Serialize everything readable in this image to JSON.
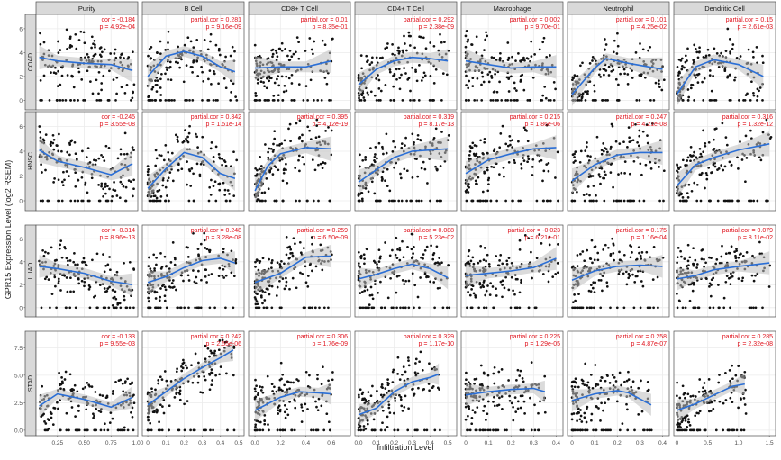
{
  "chart_data": {
    "type": "scatter",
    "ylabel": "GPR15 Expression Level (log2 RSEM)",
    "xlabel": "Infiltration Level",
    "columns": [
      "Purity",
      "B Cell",
      "CD8+ T Cell",
      "CD4+ T Cell",
      "Macrophage",
      "Neutrophil",
      "Dendritic Cell"
    ],
    "rows": [
      "COAD",
      "HNSC",
      "LUAD",
      "STAD"
    ],
    "x_axes": [
      {
        "ticks": [
          0.25,
          0.5,
          0.75,
          1.0
        ],
        "labels": [
          "0.25",
          "0.50",
          "0.75",
          "1.00"
        ],
        "xlim": [
          0.05,
          1.0
        ]
      },
      {
        "ticks": [
          0,
          0.1,
          0.2,
          0.3,
          0.4,
          0.5
        ],
        "labels": [
          "0",
          "0.1",
          "0.2",
          "0.3",
          "0.4",
          "0.5"
        ],
        "xlim": [
          -0.03,
          0.53
        ]
      },
      {
        "ticks": [
          0,
          0.2,
          0.4,
          0.6
        ],
        "labels": [
          "0.0",
          "0.2",
          "0.4",
          "0.6"
        ],
        "xlim": [
          -0.05,
          0.75
        ]
      },
      {
        "ticks": [
          0,
          0.1,
          0.2,
          0.3,
          0.4,
          0.5
        ],
        "labels": [
          "0.0",
          "0.1",
          "0.2",
          "0.3",
          "0.4",
          "0.5"
        ],
        "xlim": [
          -0.02,
          0.55
        ]
      },
      {
        "ticks": [
          0,
          0.1,
          0.2,
          0.3,
          0.4
        ],
        "labels": [
          "0",
          "0.1",
          "0.2",
          "0.3",
          "0.4"
        ],
        "xlim": [
          -0.02,
          0.43
        ]
      },
      {
        "ticks": [
          0,
          0.1,
          0.2,
          0.3,
          0.4
        ],
        "labels": [
          "0",
          "0.1",
          "0.2",
          "0.3",
          "0.4"
        ],
        "xlim": [
          -0.02,
          0.43
        ]
      },
      {
        "ticks": [
          0,
          0.5,
          1.0,
          1.5
        ],
        "labels": [
          "0",
          "0.5",
          "1.0",
          "1.5"
        ],
        "xlim": [
          -0.05,
          1.6
        ]
      }
    ],
    "y_axes": [
      {
        "ticks": [
          0,
          2,
          4,
          6
        ],
        "labels": [
          "0",
          "2",
          "4",
          "6"
        ],
        "ylim": [
          -0.8,
          7.2
        ]
      },
      {
        "ticks": [
          0,
          2,
          4,
          6
        ],
        "labels": [
          "0",
          "2",
          "4",
          "6"
        ],
        "ylim": [
          -0.8,
          7.2
        ]
      },
      {
        "ticks": [
          0,
          2,
          4,
          6
        ],
        "labels": [
          "0",
          "2",
          "4",
          "6"
        ],
        "ylim": [
          -0.8,
          7.2
        ]
      },
      {
        "ticks": [
          0,
          2.5,
          5.0,
          7.5
        ],
        "labels": [
          "0.0",
          "2.5",
          "5.0",
          "7.5"
        ],
        "ylim": [
          -0.5,
          9.0
        ]
      }
    ],
    "stats": [
      [
        [
          "cor = -0.184",
          "p = 4.92e-04"
        ],
        [
          "partial.cor = 0.281",
          "p = 9.16e-09"
        ],
        [
          "partial.cor = 0.01",
          "p = 8.35e-01"
        ],
        [
          "partial.cor = 0.292",
          "p = 2.38e-09"
        ],
        [
          "partial.cor = 0.002",
          "p = 9.70e-01"
        ],
        [
          "partial.cor = 0.101",
          "p = 4.25e-02"
        ],
        [
          "partial.cor = 0.15",
          "p = 2.61e-03"
        ]
      ],
      [
        [
          "cor = -0.245",
          "p = 3.55e-08"
        ],
        [
          "partial.cor = 0.342",
          "p = 1.51e-14"
        ],
        [
          "partial.cor = 0.395",
          "p = 4.12e-19"
        ],
        [
          "partial.cor = 0.319",
          "p = 8.17e-13"
        ],
        [
          "partial.cor = 0.215",
          "p = 1.86e-06"
        ],
        [
          "partial.cor = 0.247",
          "p = 4.21e-08"
        ],
        [
          "partial.cor = 0.316",
          "p = 1.32e-12"
        ]
      ],
      [
        [
          "cor = -0.314",
          "p = 8.96e-13"
        ],
        [
          "partial.cor = 0.248",
          "p = 3.28e-08"
        ],
        [
          "partial.cor = 0.259",
          "p = 6.50e-09"
        ],
        [
          "partial.cor = 0.088",
          "p = 5.23e-02"
        ],
        [
          "partial.cor = -0.023",
          "p = 6.21e-01"
        ],
        [
          "partial.cor = 0.175",
          "p = 1.16e-04"
        ],
        [
          "partial.cor = 0.079",
          "p = 8.11e-02"
        ]
      ],
      [
        [
          "cor = -0.133",
          "p = 9.55e-03"
        ],
        [
          "partial.cor = 0.242",
          "p = 2.55e-06"
        ],
        [
          "partial.cor = 0.306",
          "p = 1.76e-09"
        ],
        [
          "partial.cor = 0.329",
          "p = 1.17e-10"
        ],
        [
          "partial.cor = 0.225",
          "p = 1.29e-05"
        ],
        [
          "partial.cor = 0.258",
          "p = 4.87e-07"
        ],
        [
          "partial.cor = 0.285",
          "p = 2.32e-08"
        ]
      ]
    ],
    "fits": [
      [
        [
          [
            0.08,
            3.6
          ],
          [
            0.25,
            3.3
          ],
          [
            0.5,
            3.1
          ],
          [
            0.75,
            3.0
          ],
          [
            0.95,
            2.5
          ]
        ],
        [
          [
            0,
            2.0
          ],
          [
            0.1,
            3.7
          ],
          [
            0.2,
            4.1
          ],
          [
            0.3,
            3.7
          ],
          [
            0.4,
            2.8
          ],
          [
            0.48,
            2.4
          ]
        ],
        [
          [
            0,
            2.7
          ],
          [
            0.2,
            2.8
          ],
          [
            0.4,
            2.8
          ],
          [
            0.6,
            3.3
          ]
        ],
        [
          [
            0,
            1.3
          ],
          [
            0.1,
            2.6
          ],
          [
            0.2,
            3.3
          ],
          [
            0.3,
            3.6
          ],
          [
            0.4,
            3.5
          ],
          [
            0.5,
            3.3
          ]
        ],
        [
          [
            0,
            3.3
          ],
          [
            0.1,
            3.0
          ],
          [
            0.2,
            2.7
          ],
          [
            0.3,
            2.8
          ],
          [
            0.4,
            2.8
          ]
        ],
        [
          [
            0,
            0.5
          ],
          [
            0.1,
            2.7
          ],
          [
            0.15,
            3.5
          ],
          [
            0.25,
            3.1
          ],
          [
            0.4,
            2.6
          ]
        ],
        [
          [
            0,
            0.5
          ],
          [
            0.3,
            2.8
          ],
          [
            0.6,
            3.4
          ],
          [
            1.0,
            3.0
          ],
          [
            1.4,
            2.0
          ]
        ]
      ],
      [
        [
          [
            0.08,
            4.1
          ],
          [
            0.25,
            3.2
          ],
          [
            0.5,
            2.7
          ],
          [
            0.75,
            2.1
          ],
          [
            0.95,
            3.0
          ]
        ],
        [
          [
            0,
            1.0
          ],
          [
            0.1,
            2.6
          ],
          [
            0.2,
            3.9
          ],
          [
            0.3,
            3.5
          ],
          [
            0.4,
            2.2
          ],
          [
            0.48,
            1.8
          ]
        ],
        [
          [
            0,
            0.8
          ],
          [
            0.1,
            2.8
          ],
          [
            0.2,
            3.8
          ],
          [
            0.4,
            4.3
          ],
          [
            0.6,
            4.2
          ]
        ],
        [
          [
            0,
            1.5
          ],
          [
            0.1,
            2.5
          ],
          [
            0.2,
            3.5
          ],
          [
            0.3,
            4.0
          ],
          [
            0.5,
            4.2
          ]
        ],
        [
          [
            0,
            2.2
          ],
          [
            0.1,
            3.3
          ],
          [
            0.2,
            3.8
          ],
          [
            0.3,
            4.2
          ],
          [
            0.4,
            4.3
          ]
        ],
        [
          [
            0,
            1.6
          ],
          [
            0.1,
            2.9
          ],
          [
            0.2,
            3.7
          ],
          [
            0.3,
            3.9
          ],
          [
            0.4,
            3.9
          ]
        ],
        [
          [
            0,
            1.2
          ],
          [
            0.3,
            2.9
          ],
          [
            0.6,
            3.5
          ],
          [
            1.0,
            4.1
          ],
          [
            1.5,
            4.6
          ]
        ]
      ],
      [
        [
          [
            0.08,
            3.6
          ],
          [
            0.25,
            3.4
          ],
          [
            0.5,
            3.0
          ],
          [
            0.75,
            2.3
          ],
          [
            0.95,
            2.0
          ]
        ],
        [
          [
            0,
            2.2
          ],
          [
            0.1,
            2.7
          ],
          [
            0.2,
            3.5
          ],
          [
            0.3,
            4.1
          ],
          [
            0.4,
            4.3
          ],
          [
            0.48,
            3.9
          ]
        ],
        [
          [
            0,
            2.2
          ],
          [
            0.2,
            3.0
          ],
          [
            0.4,
            4.4
          ],
          [
            0.6,
            4.5
          ]
        ],
        [
          [
            0,
            2.5
          ],
          [
            0.1,
            2.9
          ],
          [
            0.2,
            3.4
          ],
          [
            0.3,
            3.8
          ],
          [
            0.4,
            3.4
          ],
          [
            0.5,
            2.6
          ]
        ],
        [
          [
            0,
            2.8
          ],
          [
            0.1,
            3.0
          ],
          [
            0.2,
            3.2
          ],
          [
            0.3,
            3.5
          ],
          [
            0.4,
            4.3
          ]
        ],
        [
          [
            0,
            2.4
          ],
          [
            0.1,
            3.2
          ],
          [
            0.2,
            3.6
          ],
          [
            0.3,
            3.7
          ],
          [
            0.4,
            3.6
          ]
        ],
        [
          [
            0,
            2.5
          ],
          [
            0.3,
            2.8
          ],
          [
            0.6,
            3.3
          ],
          [
            1.0,
            3.6
          ],
          [
            1.5,
            3.9
          ]
        ]
      ],
      [
        [
          [
            0.08,
            2.2
          ],
          [
            0.25,
            3.3
          ],
          [
            0.5,
            2.8
          ],
          [
            0.75,
            2.1
          ],
          [
            0.95,
            3.0
          ]
        ],
        [
          [
            0,
            2.3
          ],
          [
            0.1,
            3.5
          ],
          [
            0.2,
            4.7
          ],
          [
            0.3,
            5.7
          ],
          [
            0.4,
            6.6
          ],
          [
            0.47,
            7.3
          ]
        ],
        [
          [
            0,
            1.8
          ],
          [
            0.2,
            3.0
          ],
          [
            0.35,
            3.5
          ],
          [
            0.5,
            3.4
          ],
          [
            0.6,
            3.3
          ]
        ],
        [
          [
            0,
            1.4
          ],
          [
            0.1,
            2.0
          ],
          [
            0.2,
            3.5
          ],
          [
            0.3,
            4.4
          ],
          [
            0.4,
            4.8
          ],
          [
            0.45,
            5.1
          ]
        ],
        [
          [
            0,
            3.2
          ],
          [
            0.1,
            3.5
          ],
          [
            0.2,
            3.7
          ],
          [
            0.3,
            3.8
          ],
          [
            0.35,
            3.5
          ]
        ],
        [
          [
            0,
            2.7
          ],
          [
            0.1,
            3.3
          ],
          [
            0.2,
            3.6
          ],
          [
            0.25,
            3.4
          ],
          [
            0.35,
            2.3
          ]
        ],
        [
          [
            0,
            1.8
          ],
          [
            0.3,
            2.4
          ],
          [
            0.6,
            3.2
          ],
          [
            0.9,
            4.0
          ],
          [
            1.1,
            4.2
          ]
        ]
      ]
    ]
  },
  "ui": {
    "strip_bg": "#d9d9d9",
    "panel_border": "#4d4d4d",
    "grid": "#ebebeb",
    "point": "#111111",
    "fit": "#2b6fd6",
    "band": "#bdbdbd",
    "stat": "#e0141e"
  }
}
